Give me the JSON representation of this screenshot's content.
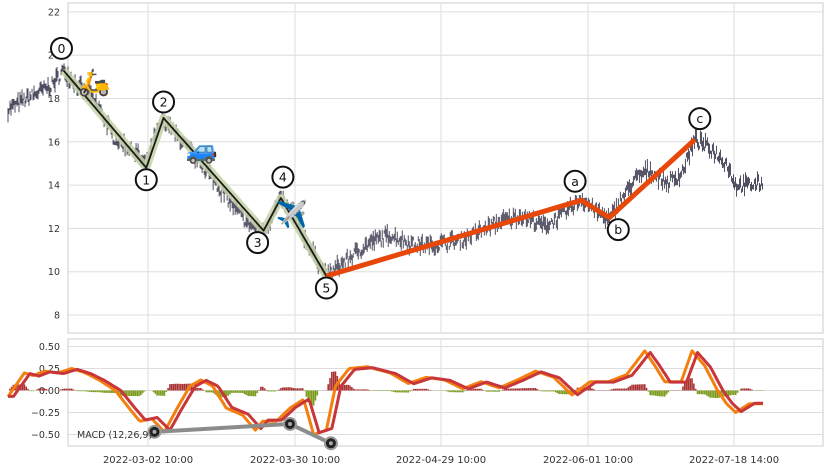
{
  "chart_data": [
    {
      "type": "line",
      "role": "price-panel",
      "title": "",
      "xlabel": "",
      "ylabel": "",
      "ylim": [
        7.2,
        22.2
      ],
      "yticks": [
        8,
        10,
        12,
        14,
        16,
        18,
        20,
        22
      ],
      "xticks": [
        "2022-03-02 10:00",
        "2022-03-30 10:00",
        "2022-04-29 10:00",
        "2022-06-01 10:00",
        "2022-07-18 14:00"
      ],
      "grid": true,
      "price_anchors": {
        "x": [
          0,
          25,
          48,
          61,
          100,
          116,
          141,
          152,
          161,
          171,
          220,
          237,
          262,
          281,
          300,
          350,
          380,
          400,
          420,
          443,
          465,
          500,
          540,
          565,
          575,
          590,
          612,
          630,
          650,
          661,
          675,
          690,
          705,
          725,
          740,
          755,
          775,
          790,
          800,
          815,
          830
        ],
        "y": [
          17.5,
          18.1,
          18.6,
          19.3,
          17.6,
          16.2,
          15.5,
          14.8,
          16.2,
          17.0,
          14.6,
          13.6,
          12.3,
          11.8,
          13.4,
          9.8,
          10.8,
          11.4,
          11.7,
          11.3,
          11.2,
          11.5,
          12.3,
          12.6,
          12.4,
          12.1,
          12.7,
          13.4,
          12.7,
          12.4,
          13.4,
          14.3,
          14.7,
          14.1,
          14.5,
          16.1,
          15.6,
          15.0,
          14.0,
          14.0,
          14.1
        ]
      },
      "series": [
        {
          "name": "",
          "color": "#1a1a1a",
          "points": [
            {
              "x": 61,
              "y": 19.3,
              "label": "0"
            },
            {
              "x": 152,
              "y": 14.8,
              "label": "1"
            },
            {
              "x": 171,
              "y": 17.1,
              "label": "2"
            },
            {
              "x": 281,
              "y": 11.9,
              "label": "3"
            },
            {
              "x": 300,
              "y": 13.4,
              "label": "4"
            },
            {
              "x": 350,
              "y": 9.8,
              "label": "5"
            }
          ]
        },
        {
          "name": "",
          "color": "#e8470a",
          "points": [
            {
              "x": 350,
              "y": 9.8
            },
            {
              "x": 630,
              "y": 13.3,
              "label": "a"
            },
            {
              "x": 661,
              "y": 12.5,
              "label": "b"
            },
            {
              "x": 755,
              "y": 16.1,
              "label": "c"
            }
          ]
        }
      ],
      "annotations": [
        {
          "icon": "scooter-icon",
          "glyph": "🛵",
          "x": 95,
          "y": 18.8
        },
        {
          "icon": "car-icon",
          "glyph": "🚙",
          "x": 213,
          "y": 15.7
        },
        {
          "icon": "airplane-icon",
          "glyph": "✈️",
          "x": 312,
          "y": 12.7
        }
      ],
      "colors": {
        "axes_bg": "#eaeaf2",
        "grid": "#d6d6d6",
        "bars": "#3b3b50",
        "wave_halo": "#c5d3a8"
      }
    },
    {
      "type": "line",
      "role": "macd-panel",
      "title": "",
      "label": "MACD (12,26,9)",
      "ylim": [
        -0.63,
        0.56
      ],
      "yticks": [
        0.5,
        0.25,
        0.0,
        -0.25,
        -0.5
      ],
      "ytick_labels": [
        "0.50",
        "0.25",
        "0.00",
        "−0.25",
        "−0.50"
      ],
      "grid": true,
      "macd_anchors": {
        "x": [
          0,
          8,
          18,
          28,
          40,
          55,
          70,
          85,
          100,
          118,
          133,
          145,
          158,
          172,
          186,
          200,
          212,
          225,
          240,
          258,
          272,
          280,
          295,
          310,
          325,
          336,
          350,
          360,
          375,
          395,
          420,
          440,
          460,
          480,
          500,
          520,
          540,
          560,
          580,
          600,
          620,
          640,
          660,
          680,
          700,
          710,
          722,
          740,
          752,
          766,
          780,
          790,
          800,
          815,
          830
        ],
        "y": [
          -0.07,
          0.05,
          0.2,
          0.17,
          0.22,
          0.2,
          0.25,
          0.2,
          0.12,
          0.0,
          -0.2,
          -0.35,
          -0.32,
          -0.47,
          -0.2,
          0.05,
          0.12,
          0.05,
          -0.2,
          -0.28,
          -0.45,
          -0.35,
          -0.35,
          -0.2,
          -0.1,
          -0.5,
          -0.45,
          0.05,
          0.25,
          0.27,
          0.2,
          0.08,
          0.15,
          0.12,
          0.02,
          0.1,
          0.03,
          0.12,
          0.22,
          0.15,
          -0.05,
          0.1,
          0.1,
          0.18,
          0.45,
          0.3,
          0.1,
          0.1,
          0.45,
          0.28,
          0.0,
          -0.15,
          -0.25,
          -0.15,
          -0.15
        ]
      },
      "series": [
        {
          "name": "",
          "color": "#f47f0e",
          "lag": 0
        },
        {
          "name": "",
          "color": "#c8363a",
          "lag": 6
        }
      ],
      "histogram": {
        "pos_color": "#a83232",
        "neg_color": "#7a9a1a"
      },
      "divergence": {
        "color": "#8c8c8c",
        "points": [
          {
            "x": 161,
            "y": -0.47
          },
          {
            "x": 310,
            "y": -0.38
          },
          {
            "x": 355,
            "y": -0.6
          }
        ]
      }
    }
  ]
}
